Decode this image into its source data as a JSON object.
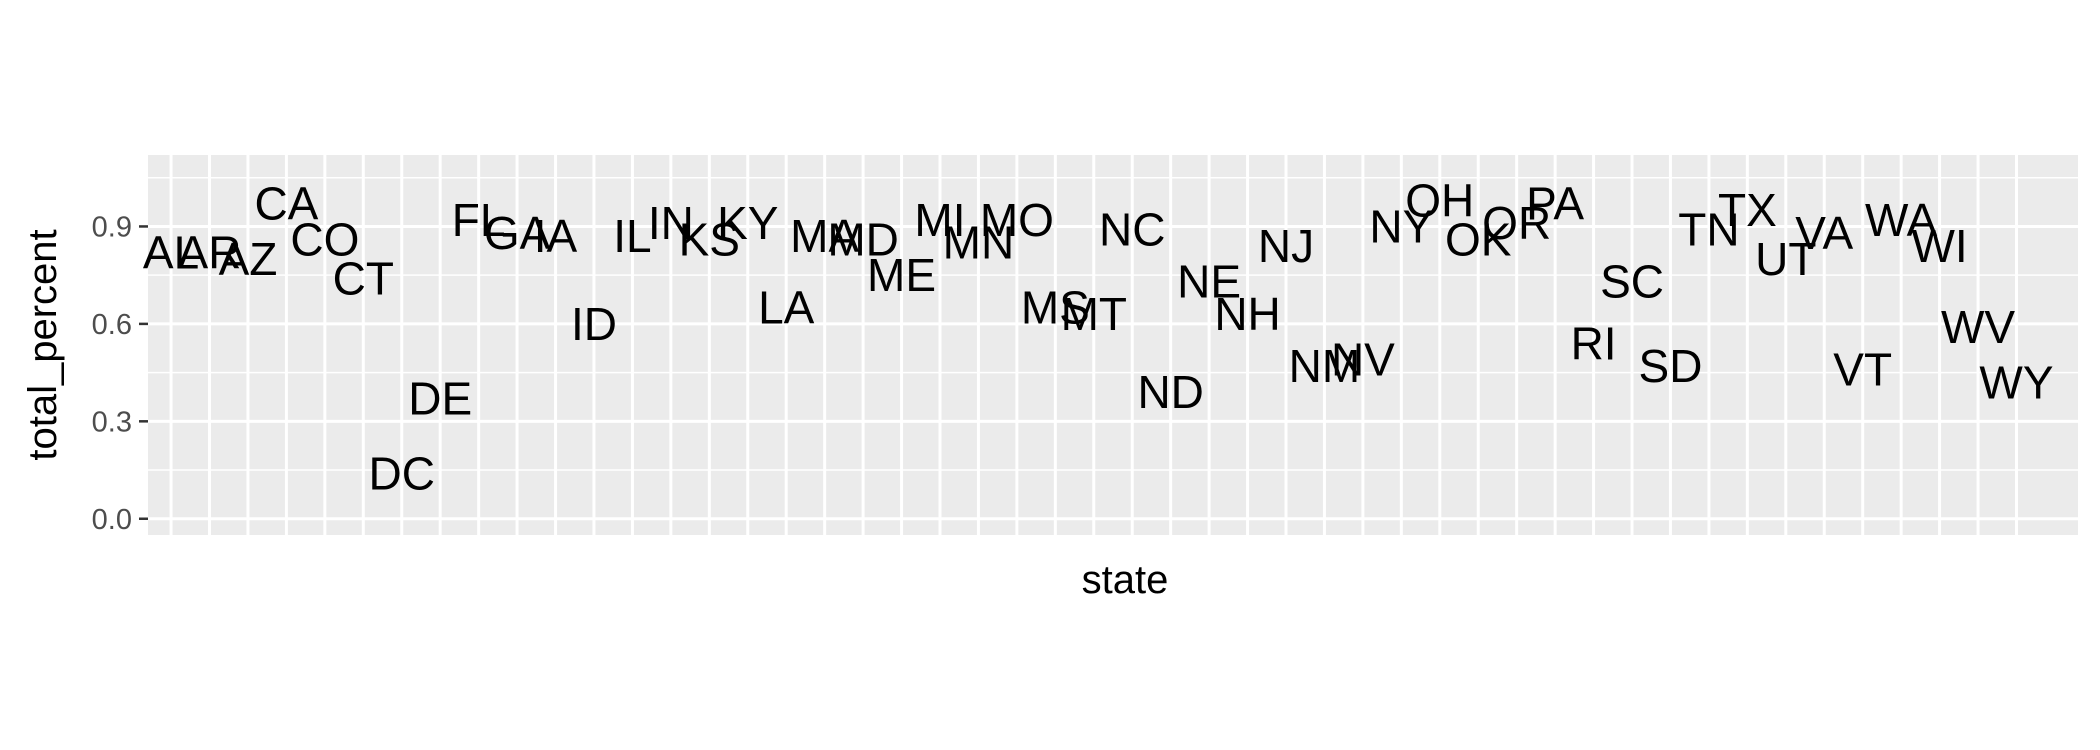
{
  "chart_data": {
    "type": "scatter",
    "xlabel": "state",
    "ylabel": "total_percent",
    "ylim": [
      -0.05,
      1.12
    ],
    "yticks": [
      0.0,
      0.3,
      0.6,
      0.9
    ],
    "ytick_labels": [
      "0.0",
      "0.3",
      "0.6",
      "0.9"
    ],
    "grid": true,
    "categories": [
      "AL",
      "AR",
      "AZ",
      "CA",
      "CO",
      "CT",
      "DC",
      "DE",
      "FL",
      "GA",
      "IA",
      "ID",
      "IL",
      "IN",
      "KS",
      "KY",
      "LA",
      "MA",
      "MD",
      "ME",
      "MI",
      "MN",
      "MO",
      "MS",
      "MT",
      "NC",
      "ND",
      "NE",
      "NH",
      "NJ",
      "NM",
      "NV",
      "NY",
      "OH",
      "OK",
      "OR",
      "PA",
      "RI",
      "SC",
      "SD",
      "TN",
      "TX",
      "UT",
      "VA",
      "VT",
      "WA",
      "WI",
      "WV",
      "WY"
    ],
    "points": [
      {
        "x": "AL",
        "y": 0.82
      },
      {
        "x": "AR",
        "y": 0.82
      },
      {
        "x": "AZ",
        "y": 0.8
      },
      {
        "x": "CA",
        "y": 0.97
      },
      {
        "x": "CO",
        "y": 0.86
      },
      {
        "x": "CT",
        "y": 0.74
      },
      {
        "x": "DC",
        "y": 0.14
      },
      {
        "x": "DE",
        "y": 0.37
      },
      {
        "x": "FL",
        "y": 0.92
      },
      {
        "x": "GA",
        "y": 0.88
      },
      {
        "x": "IA",
        "y": 0.87
      },
      {
        "x": "ID",
        "y": 0.6
      },
      {
        "x": "IL",
        "y": 0.87
      },
      {
        "x": "IN",
        "y": 0.91
      },
      {
        "x": "KS",
        "y": 0.86
      },
      {
        "x": "KY",
        "y": 0.91
      },
      {
        "x": "LA",
        "y": 0.65
      },
      {
        "x": "MA",
        "y": 0.87
      },
      {
        "x": "MD",
        "y": 0.86
      },
      {
        "x": "ME",
        "y": 0.75
      },
      {
        "x": "MI",
        "y": 0.92
      },
      {
        "x": "MN",
        "y": 0.85
      },
      {
        "x": "MO",
        "y": 0.92
      },
      {
        "x": "MS",
        "y": 0.65
      },
      {
        "x": "MT",
        "y": 0.63
      },
      {
        "x": "NC",
        "y": 0.89
      },
      {
        "x": "ND",
        "y": 0.39
      },
      {
        "x": "NE",
        "y": 0.73
      },
      {
        "x": "NH",
        "y": 0.63
      },
      {
        "x": "NJ",
        "y": 0.84
      },
      {
        "x": "NM",
        "y": 0.47
      },
      {
        "x": "NV",
        "y": 0.49
      },
      {
        "x": "NY",
        "y": 0.9
      },
      {
        "x": "OH",
        "y": 0.98
      },
      {
        "x": "OK",
        "y": 0.86
      },
      {
        "x": "OR",
        "y": 0.91
      },
      {
        "x": "PA",
        "y": 0.97
      },
      {
        "x": "RI",
        "y": 0.54
      },
      {
        "x": "SC",
        "y": 0.73
      },
      {
        "x": "SD",
        "y": 0.47
      },
      {
        "x": "TN",
        "y": 0.89
      },
      {
        "x": "TX",
        "y": 0.95
      },
      {
        "x": "UT",
        "y": 0.8
      },
      {
        "x": "VA",
        "y": 0.88
      },
      {
        "x": "VT",
        "y": 0.46
      },
      {
        "x": "WA",
        "y": 0.92
      },
      {
        "x": "WI",
        "y": 0.84
      },
      {
        "x": "WV",
        "y": 0.59
      },
      {
        "x": "WY",
        "y": 0.42
      }
    ]
  }
}
